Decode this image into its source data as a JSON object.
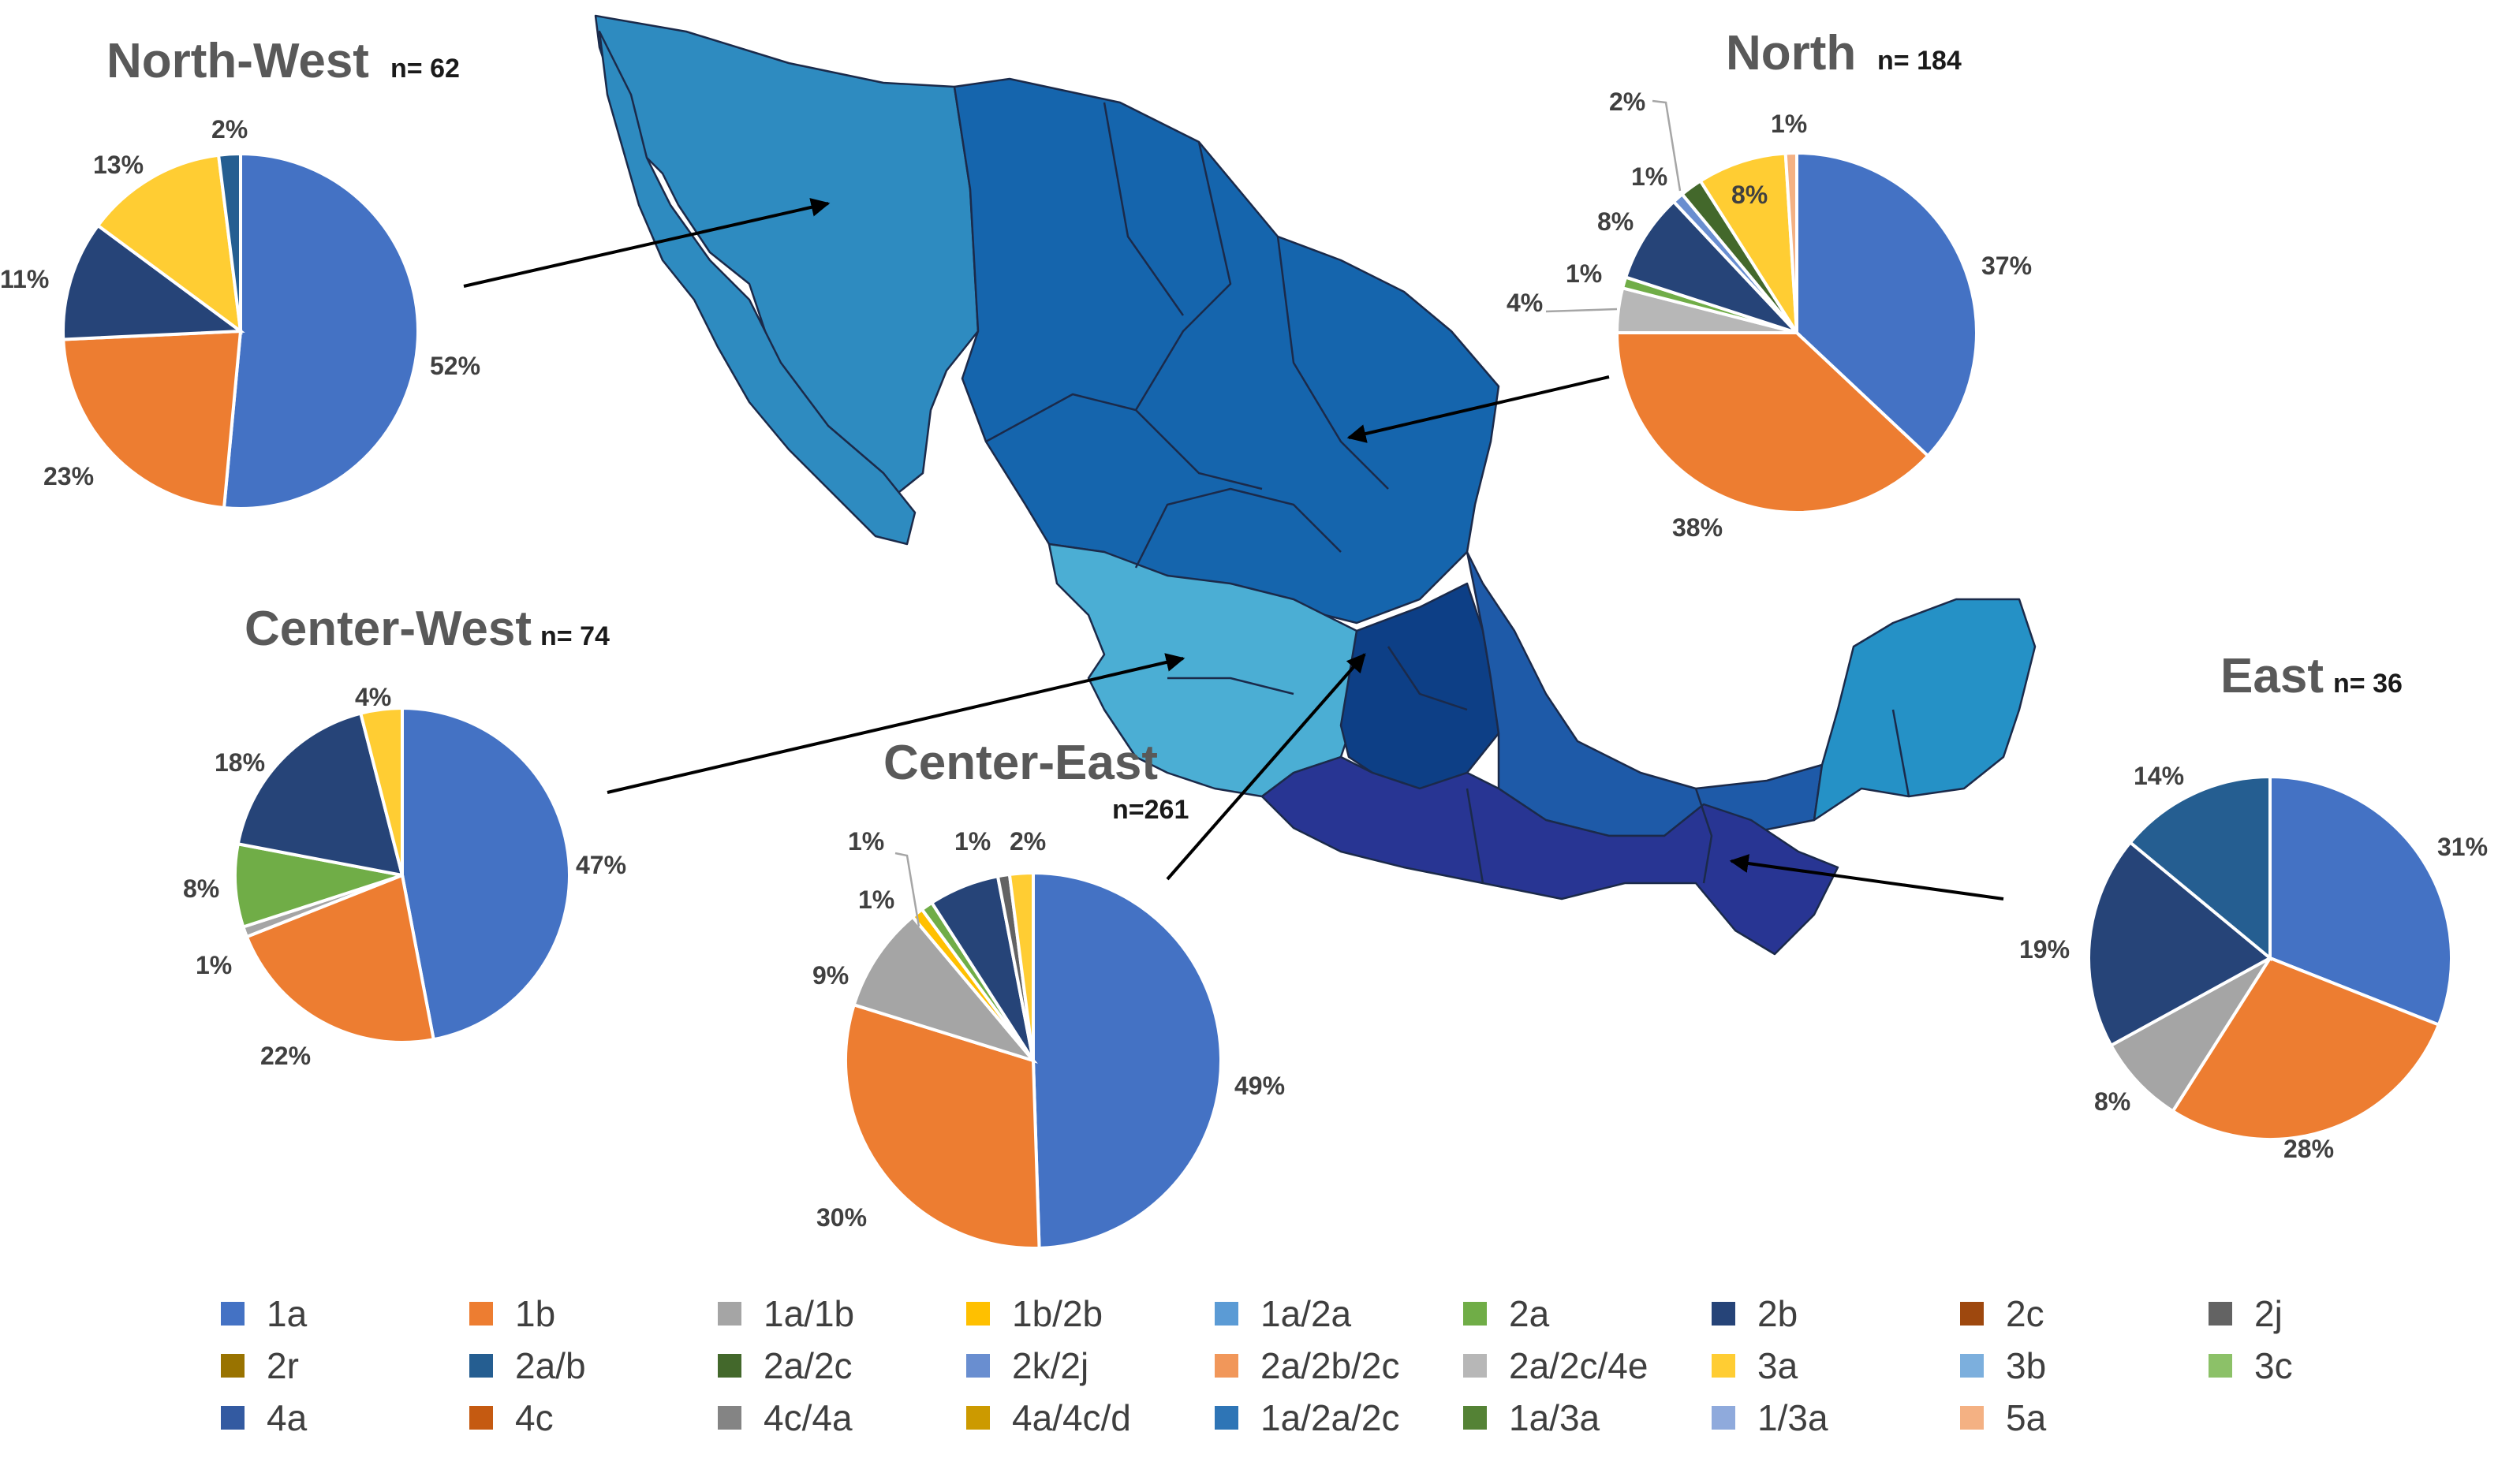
{
  "chart_data": [
    {
      "type": "pie",
      "title": "North-West",
      "n_label": "n= 62",
      "categories": [
        "1a",
        "1b",
        "2b",
        "3a",
        "2a/b"
      ],
      "values": [
        52,
        23,
        11,
        13,
        2
      ],
      "labels": [
        "52%",
        "23%",
        "11%",
        "13%",
        "2%"
      ]
    },
    {
      "type": "pie",
      "title": "North",
      "n_label": "n= 184",
      "categories": [
        "1a",
        "1b",
        "2a/2c/4e",
        "2a",
        "2b",
        "2k/2j",
        "2a/2c",
        "3a",
        "5a"
      ],
      "values": [
        37,
        38,
        4,
        1,
        8,
        1,
        2,
        8,
        1
      ],
      "labels": [
        "37%",
        "38%",
        "4%",
        "1%",
        "8%",
        "1%",
        "2%",
        "8%",
        "1%"
      ]
    },
    {
      "type": "pie",
      "title": "Center-West",
      "n_label": "n= 74",
      "categories": [
        "1a",
        "1b",
        "1a/1b",
        "2a",
        "2b",
        "3a"
      ],
      "values": [
        47,
        22,
        1,
        8,
        18,
        4
      ],
      "labels": [
        "47%",
        "22%",
        "1%",
        "8%",
        "18%",
        "4%"
      ]
    },
    {
      "type": "pie",
      "title": "Center-East",
      "n_label": "n=261",
      "categories": [
        "1a",
        "1b",
        "1a/1b",
        "1b/2b",
        "2a",
        "2b",
        "2j",
        "3a"
      ],
      "values": [
        49,
        30,
        9,
        1,
        1,
        6,
        1,
        2
      ],
      "labels": [
        "49%",
        "30%",
        "9%",
        "1%",
        "1%",
        "",
        "1%",
        "2%"
      ]
    },
    {
      "type": "pie",
      "title": "East",
      "n_label": "n= 36",
      "categories": [
        "1a",
        "1b",
        "1a/1b",
        "2b",
        "2a/b"
      ],
      "values": [
        31,
        28,
        8,
        19,
        14
      ],
      "labels": [
        "31%",
        "28%",
        "8%",
        "19%",
        "14%"
      ]
    }
  ],
  "legend": [
    {
      "label": "1a",
      "color": "#4472C4"
    },
    {
      "label": "1b",
      "color": "#ED7D31"
    },
    {
      "label": "1a/1b",
      "color": "#A5A5A5"
    },
    {
      "label": "1b/2b",
      "color": "#FFC000"
    },
    {
      "label": "1a/2a",
      "color": "#5B9BD5"
    },
    {
      "label": "2a",
      "color": "#70AD47"
    },
    {
      "label": "2b",
      "color": "#264478"
    },
    {
      "label": "2c",
      "color": "#9E480E"
    },
    {
      "label": "2j",
      "color": "#636363"
    },
    {
      "label": "2r",
      "color": "#997300"
    },
    {
      "label": "2a/b",
      "color": "#255E91"
    },
    {
      "label": "2a/2c",
      "color": "#43682B"
    },
    {
      "label": "2k/2j",
      "color": "#698ED0"
    },
    {
      "label": "2a/2b/2c",
      "color": "#F1975A"
    },
    {
      "label": "2a/2c/4e",
      "color": "#B7B7B7"
    },
    {
      "label": "3a",
      "color": "#FFCD33"
    },
    {
      "label": "3b",
      "color": "#7CAFDD"
    },
    {
      "label": "3c",
      "color": "#8CC168"
    },
    {
      "label": "4a",
      "color": "#335AA1"
    },
    {
      "label": "4c",
      "color": "#C55A11"
    },
    {
      "label": "4c/4a",
      "color": "#848484"
    },
    {
      "label": "4a/4c/d",
      "color": "#CC9A00"
    },
    {
      "label": "1a/2a/2c",
      "color": "#2E75B6"
    },
    {
      "label": "1a/3a",
      "color": "#548235"
    },
    {
      "label": "1/3a",
      "color": "#8FAADC"
    },
    {
      "label": "5a",
      "color": "#F4B183"
    }
  ],
  "map": {
    "colors": {
      "north_west": "#2E8BC0",
      "north": "#1565AD",
      "center_west": "#4BAED4",
      "center_east": "#0D3F86",
      "south": "#283593",
      "gulf": "#1E5AA8",
      "yucatan": "#2591C6",
      "outline": "#1b2a4a"
    }
  },
  "palette": {
    "title": "#595959",
    "label": "#404040",
    "n": "#1a1a1a",
    "arrow": "#000000"
  }
}
